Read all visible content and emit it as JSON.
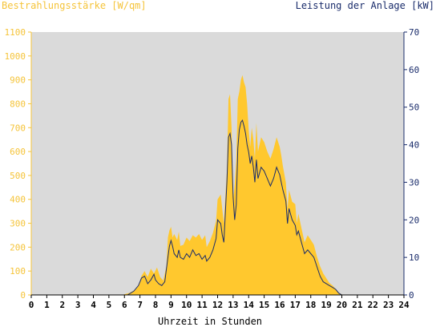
{
  "chart_data": {
    "type": "area",
    "left_axis_title": "Bestrahlungsstärke [W/qm]",
    "right_axis_title": "Leistung der Anlage [kW]",
    "xlabel": "Uhrzeit in Stunden",
    "x_ticks": [
      "0",
      "1",
      "2",
      "3",
      "4",
      "5",
      "6",
      "7",
      "8",
      "9",
      "10",
      "11",
      "12",
      "13",
      "14",
      "15",
      "16",
      "17",
      "18",
      "19",
      "20",
      "21",
      "22",
      "23",
      "24"
    ],
    "y_left_ticks": [
      "0",
      "100",
      "200",
      "300",
      "400",
      "500",
      "600",
      "700",
      "800",
      "900",
      "1000",
      "1100"
    ],
    "y_right_ticks": [
      "0",
      "10",
      "20",
      "30",
      "40",
      "50",
      "60",
      "70"
    ],
    "xlim": [
      0,
      24
    ],
    "ylim_left": [
      0,
      1100
    ],
    "ylim_right": [
      0,
      70
    ],
    "grid": false,
    "colors": {
      "irradiance": "#ffc82e",
      "power": "#1a2c6b",
      "plot_background": "#dadada",
      "left_axis": "#f5c43a",
      "right_axis": "#1a2c6b"
    },
    "series": [
      {
        "axis": "left",
        "points": [
          [
            0,
            0
          ],
          [
            5.9,
            0
          ],
          [
            6.0,
            3
          ],
          [
            6.3,
            8
          ],
          [
            6.6,
            18
          ],
          [
            6.9,
            40
          ],
          [
            7.1,
            80
          ],
          [
            7.3,
            100
          ],
          [
            7.5,
            75
          ],
          [
            7.7,
            110
          ],
          [
            7.9,
            90
          ],
          [
            8.1,
            115
          ],
          [
            8.3,
            75
          ],
          [
            8.5,
            60
          ],
          [
            8.7,
            120
          ],
          [
            8.8,
            240
          ],
          [
            8.9,
            270
          ],
          [
            9.0,
            285
          ],
          [
            9.1,
            240
          ],
          [
            9.2,
            255
          ],
          [
            9.4,
            230
          ],
          [
            9.5,
            265
          ],
          [
            9.6,
            205
          ],
          [
            9.8,
            210
          ],
          [
            10.0,
            240
          ],
          [
            10.2,
            225
          ],
          [
            10.4,
            250
          ],
          [
            10.6,
            240
          ],
          [
            10.8,
            255
          ],
          [
            11.0,
            230
          ],
          [
            11.2,
            250
          ],
          [
            11.3,
            200
          ],
          [
            11.5,
            225
          ],
          [
            11.7,
            260
          ],
          [
            11.9,
            310
          ],
          [
            12.0,
            400
          ],
          [
            12.2,
            420
          ],
          [
            12.3,
            360
          ],
          [
            12.4,
            300
          ],
          [
            12.6,
            520
          ],
          [
            12.7,
            820
          ],
          [
            12.8,
            840
          ],
          [
            12.9,
            700
          ],
          [
            13.0,
            390
          ],
          [
            13.1,
            460
          ],
          [
            13.2,
            560
          ],
          [
            13.3,
            820
          ],
          [
            13.4,
            850
          ],
          [
            13.5,
            900
          ],
          [
            13.6,
            920
          ],
          [
            13.7,
            890
          ],
          [
            13.8,
            870
          ],
          [
            13.9,
            800
          ],
          [
            14.0,
            690
          ],
          [
            14.1,
            620
          ],
          [
            14.2,
            700
          ],
          [
            14.3,
            650
          ],
          [
            14.4,
            570
          ],
          [
            14.5,
            720
          ],
          [
            14.6,
            600
          ],
          [
            14.8,
            660
          ],
          [
            15.0,
            640
          ],
          [
            15.2,
            600
          ],
          [
            15.4,
            570
          ],
          [
            15.6,
            610
          ],
          [
            15.8,
            660
          ],
          [
            16.0,
            620
          ],
          [
            16.1,
            585
          ],
          [
            16.2,
            540
          ],
          [
            16.4,
            470
          ],
          [
            16.5,
            360
          ],
          [
            16.6,
            440
          ],
          [
            16.8,
            390
          ],
          [
            17.0,
            380
          ],
          [
            17.1,
            300
          ],
          [
            17.2,
            340
          ],
          [
            17.4,
            280
          ],
          [
            17.6,
            220
          ],
          [
            17.8,
            250
          ],
          [
            18.0,
            230
          ],
          [
            18.2,
            210
          ],
          [
            18.4,
            160
          ],
          [
            18.6,
            120
          ],
          [
            18.8,
            90
          ],
          [
            19.0,
            70
          ],
          [
            19.2,
            50
          ],
          [
            19.4,
            40
          ],
          [
            19.6,
            25
          ],
          [
            19.8,
            10
          ],
          [
            20.0,
            2
          ],
          [
            20.2,
            0
          ],
          [
            24,
            0
          ]
        ]
      },
      {
        "axis": "right",
        "points": [
          [
            0,
            0
          ],
          [
            6.2,
            0
          ],
          [
            6.4,
            0.5
          ],
          [
            6.6,
            1
          ],
          [
            6.9,
            2.5
          ],
          [
            7.1,
            4.5
          ],
          [
            7.3,
            5
          ],
          [
            7.5,
            3
          ],
          [
            7.7,
            4
          ],
          [
            7.9,
            5.5
          ],
          [
            8.0,
            4
          ],
          [
            8.2,
            3
          ],
          [
            8.4,
            2.5
          ],
          [
            8.6,
            3.5
          ],
          [
            8.8,
            10
          ],
          [
            8.9,
            13
          ],
          [
            9.0,
            14.5
          ],
          [
            9.1,
            13
          ],
          [
            9.2,
            11
          ],
          [
            9.4,
            10
          ],
          [
            9.5,
            12
          ],
          [
            9.6,
            10
          ],
          [
            9.8,
            9.5
          ],
          [
            10.0,
            11
          ],
          [
            10.2,
            10
          ],
          [
            10.4,
            12
          ],
          [
            10.6,
            10.5
          ],
          [
            10.8,
            11
          ],
          [
            11.0,
            9.5
          ],
          [
            11.2,
            10.5
          ],
          [
            11.3,
            9
          ],
          [
            11.5,
            10
          ],
          [
            11.7,
            12
          ],
          [
            11.9,
            15
          ],
          [
            12.0,
            20
          ],
          [
            12.2,
            19
          ],
          [
            12.3,
            16
          ],
          [
            12.4,
            14
          ],
          [
            12.6,
            30
          ],
          [
            12.7,
            42
          ],
          [
            12.8,
            43
          ],
          [
            12.9,
            40
          ],
          [
            13.0,
            26
          ],
          [
            13.1,
            20
          ],
          [
            13.2,
            24
          ],
          [
            13.3,
            39
          ],
          [
            13.4,
            44
          ],
          [
            13.5,
            46
          ],
          [
            13.6,
            46.5
          ],
          [
            13.7,
            45
          ],
          [
            13.8,
            43
          ],
          [
            13.9,
            40
          ],
          [
            14.0,
            38
          ],
          [
            14.1,
            35
          ],
          [
            14.2,
            37
          ],
          [
            14.3,
            34
          ],
          [
            14.4,
            30
          ],
          [
            14.5,
            36
          ],
          [
            14.6,
            31
          ],
          [
            14.8,
            34
          ],
          [
            15.0,
            33
          ],
          [
            15.2,
            31
          ],
          [
            15.4,
            29
          ],
          [
            15.6,
            31
          ],
          [
            15.8,
            34
          ],
          [
            16.0,
            32
          ],
          [
            16.1,
            30
          ],
          [
            16.2,
            28
          ],
          [
            16.4,
            25
          ],
          [
            16.5,
            19
          ],
          [
            16.6,
            23
          ],
          [
            16.8,
            20
          ],
          [
            17.0,
            18.5
          ],
          [
            17.1,
            16
          ],
          [
            17.2,
            17
          ],
          [
            17.4,
            14
          ],
          [
            17.6,
            11
          ],
          [
            17.8,
            12
          ],
          [
            18.0,
            11
          ],
          [
            18.2,
            10
          ],
          [
            18.4,
            7.5
          ],
          [
            18.6,
            5
          ],
          [
            18.8,
            3.5
          ],
          [
            19.0,
            3
          ],
          [
            19.2,
            2.5
          ],
          [
            19.4,
            2
          ],
          [
            19.6,
            1.5
          ],
          [
            19.8,
            0.5
          ],
          [
            20.0,
            0
          ],
          [
            24,
            0
          ]
        ]
      }
    ]
  }
}
